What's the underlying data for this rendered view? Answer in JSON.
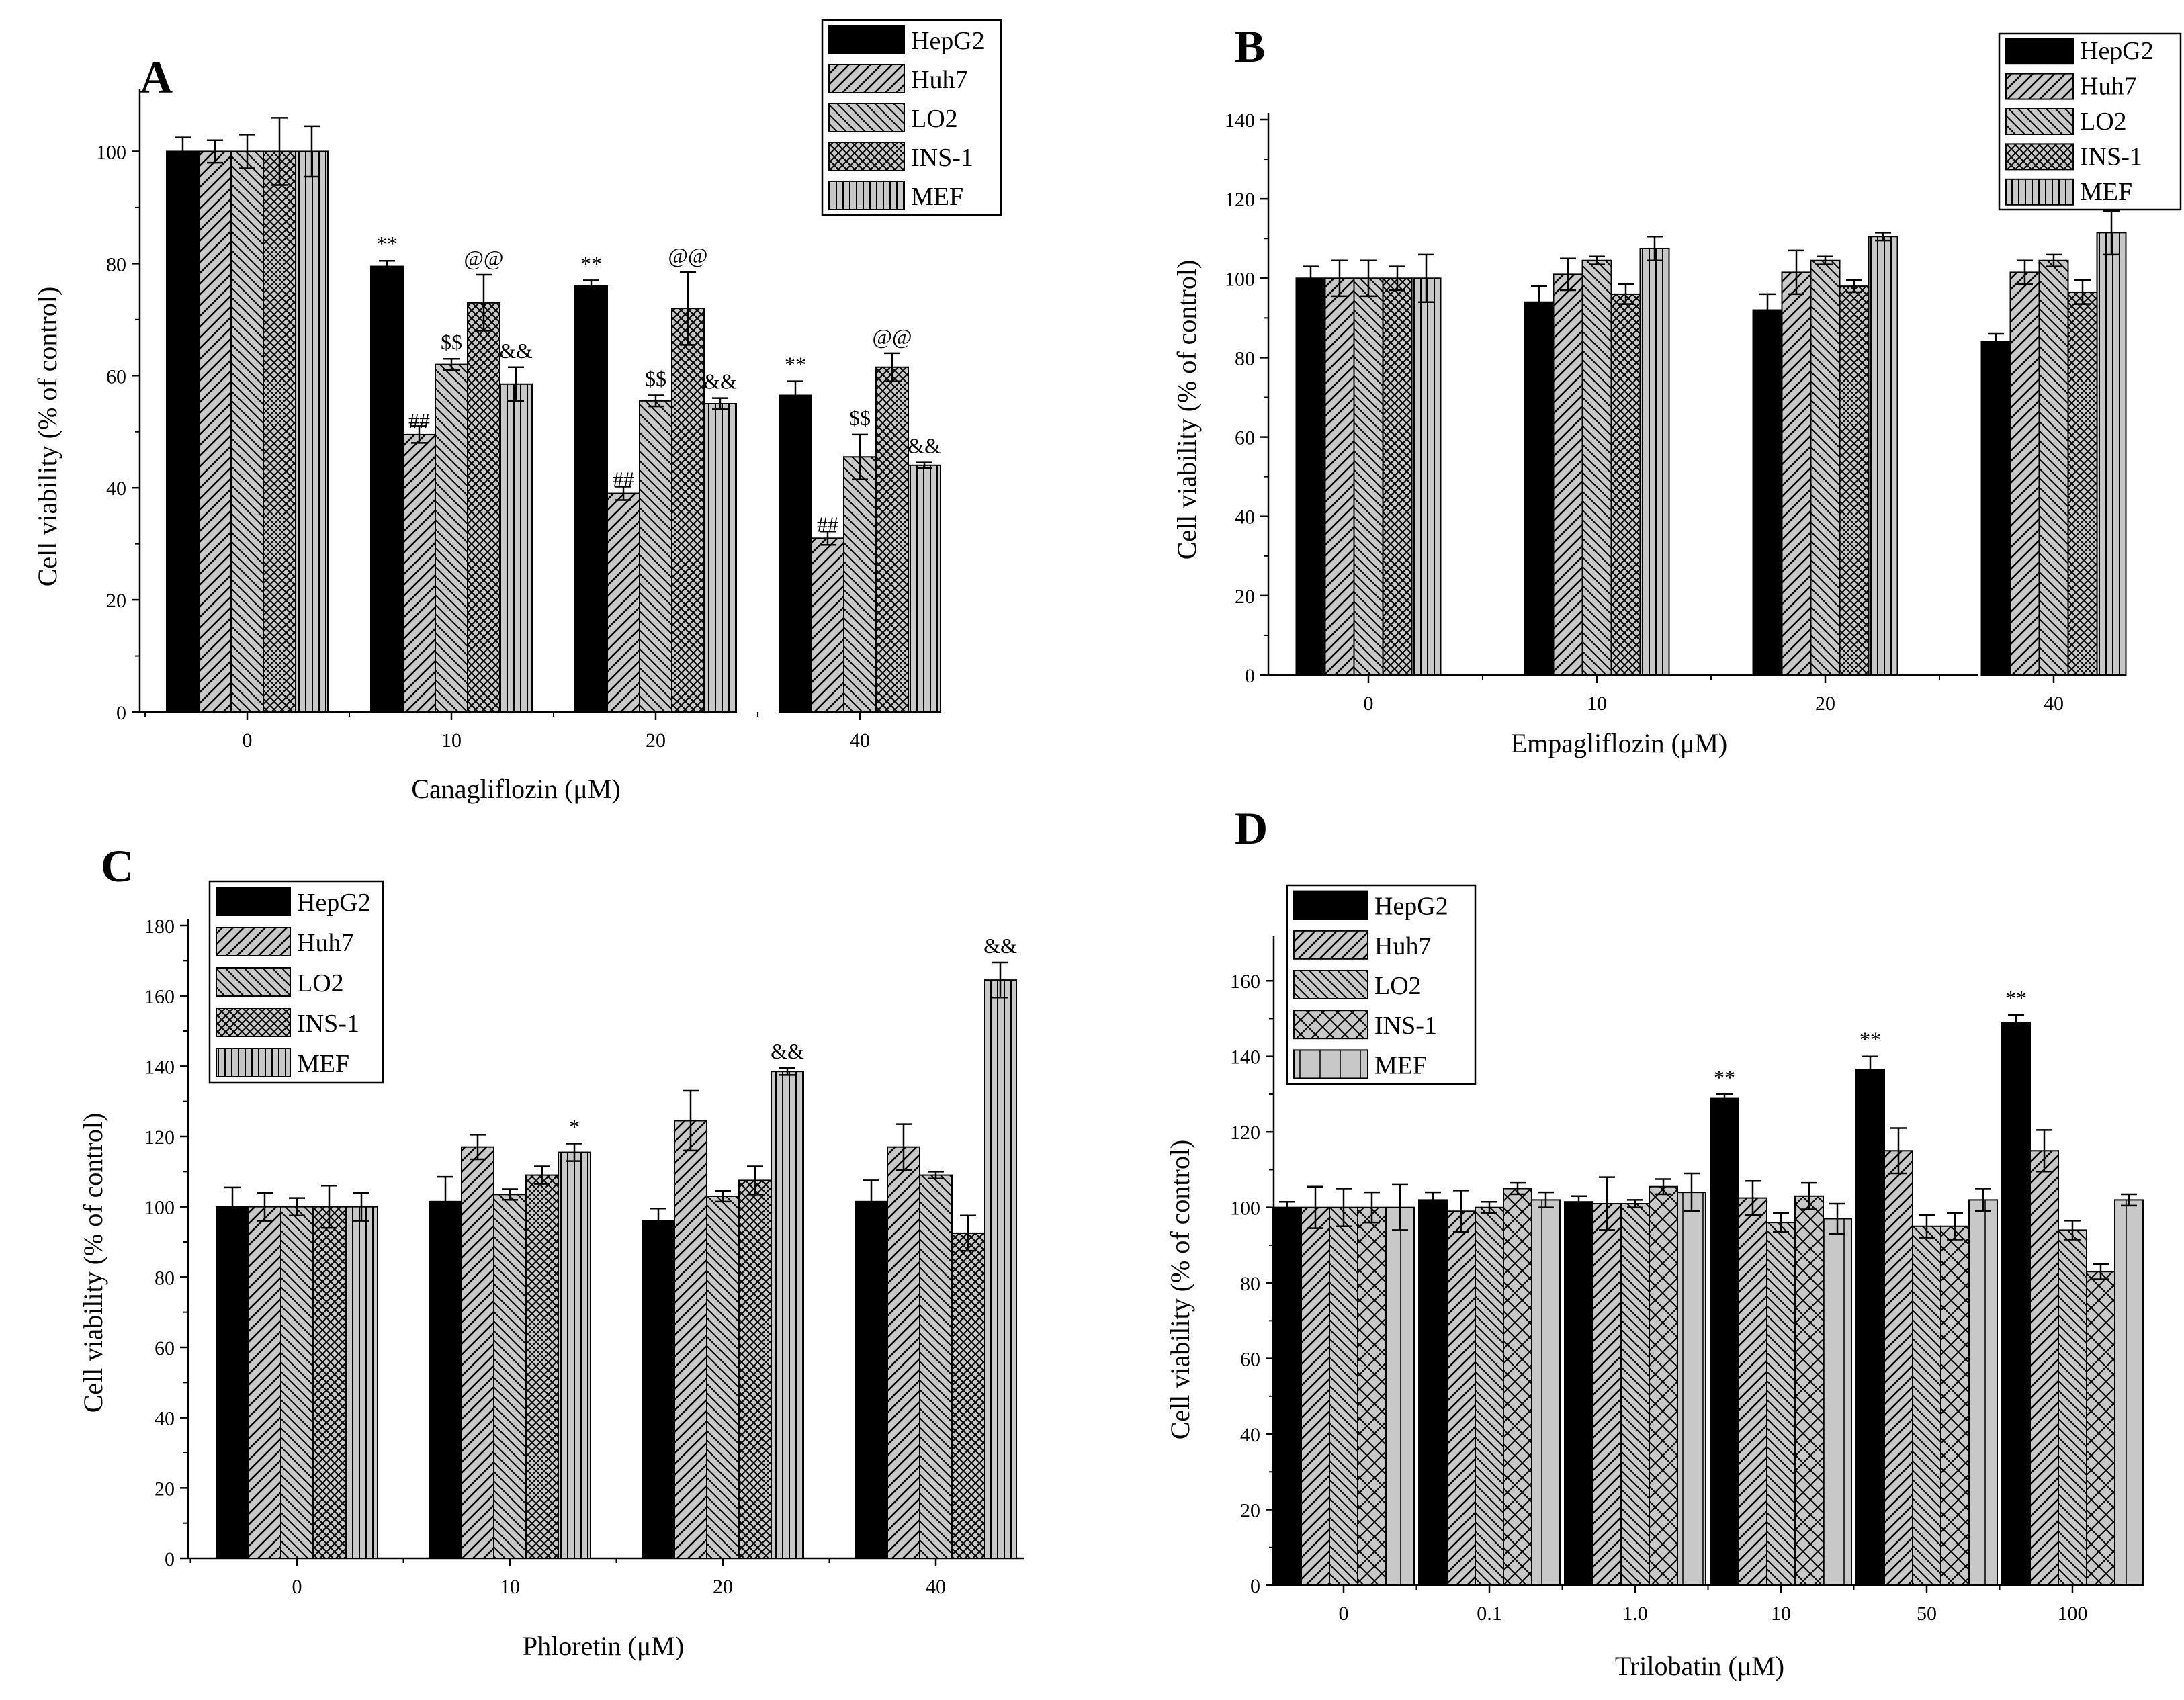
{
  "series_names": [
    "HepG2",
    "Huh7",
    "LO2",
    "INS-1",
    "MEF"
  ],
  "colors": {
    "HepG2": "#000000",
    "fill": "#c0c0c0",
    "stroke": "#000000"
  },
  "panels": [
    {
      "id": "A",
      "letter": "A",
      "chart_data": {
        "type": "bar",
        "title": "",
        "xlabel": "Canagliflozin (μM)",
        "ylabel": "Cell viability (% of control)",
        "categories": [
          "0",
          "10",
          "20",
          "40"
        ],
        "ylim": [
          0,
          110
        ],
        "yticks": [
          0,
          20,
          40,
          60,
          80,
          100
        ],
        "grid": false,
        "legend": "top-right",
        "series": [
          {
            "name": "HepG2",
            "values": [
              100,
              79.5,
              76,
              56.5
            ],
            "errors": [
              2.5,
              1.0,
              1.0,
              2.5
            ],
            "pattern": "solid"
          },
          {
            "name": "Huh7",
            "values": [
              100,
              49.5,
              39,
              31
            ],
            "errors": [
              2.0,
              1.5,
              1.2,
              1.2
            ],
            "pattern": "diag-right"
          },
          {
            "name": "LO2",
            "values": [
              100,
              62,
              55.5,
              45.5
            ],
            "errors": [
              3.0,
              1.0,
              1.0,
              4.0
            ],
            "pattern": "diag-left"
          },
          {
            "name": "INS-1",
            "values": [
              100,
              73,
              72,
              61.5
            ],
            "errors": [
              6.0,
              5.0,
              6.5,
              2.5
            ],
            "pattern": "cross"
          },
          {
            "name": "MEF",
            "values": [
              100,
              58.5,
              55,
              44
            ],
            "errors": [
              4.5,
              3.0,
              1.0,
              0.5
            ],
            "pattern": "vertical"
          }
        ],
        "annotations": [
          {
            "series": 0,
            "category": 1,
            "text": "**"
          },
          {
            "series": 1,
            "category": 1,
            "text": "##"
          },
          {
            "series": 2,
            "category": 1,
            "text": "$$"
          },
          {
            "series": 3,
            "category": 1,
            "text": "@@"
          },
          {
            "series": 4,
            "category": 1,
            "text": "&&"
          },
          {
            "series": 0,
            "category": 2,
            "text": "**"
          },
          {
            "series": 1,
            "category": 2,
            "text": "##"
          },
          {
            "series": 2,
            "category": 2,
            "text": "$$"
          },
          {
            "series": 3,
            "category": 2,
            "text": "@@"
          },
          {
            "series": 4,
            "category": 2,
            "text": "&&"
          },
          {
            "series": 0,
            "category": 3,
            "text": "**"
          },
          {
            "series": 1,
            "category": 3,
            "text": "##"
          },
          {
            "series": 2,
            "category": 3,
            "text": "$$"
          },
          {
            "series": 3,
            "category": 3,
            "text": "@@"
          },
          {
            "series": 4,
            "category": 3,
            "text": "&&"
          }
        ]
      }
    },
    {
      "id": "B",
      "letter": "B",
      "chart_data": {
        "type": "bar",
        "title": "",
        "xlabel": "Empagliflozin (μM)",
        "ylabel": "Cell viability (% of control)",
        "categories": [
          "0",
          "10",
          "20",
          "40"
        ],
        "ylim": [
          0,
          140
        ],
        "yticks": [
          0,
          20,
          40,
          60,
          80,
          100,
          120,
          140
        ],
        "grid": false,
        "legend": "top-right",
        "series": [
          {
            "name": "HepG2",
            "values": [
              100,
              94,
              92,
              84
            ],
            "errors": [
              3,
              4,
              4,
              2
            ],
            "pattern": "solid"
          },
          {
            "name": "Huh7",
            "values": [
              100,
              101,
              101.5,
              101.5
            ],
            "errors": [
              4.5,
              4,
              5.5,
              3
            ],
            "pattern": "diag-right"
          },
          {
            "name": "LO2",
            "values": [
              100,
              104.5,
              104.5,
              104.5
            ],
            "errors": [
              4.5,
              1,
              1,
              1.5
            ],
            "pattern": "diag-left"
          },
          {
            "name": "INS-1",
            "values": [
              100,
              96,
              98,
              96.5
            ],
            "errors": [
              3,
              2.5,
              1.5,
              3
            ],
            "pattern": "cross"
          },
          {
            "name": "MEF",
            "values": [
              100,
              107.5,
              110.5,
              111.5
            ],
            "errors": [
              6,
              3,
              1,
              5.5
            ],
            "pattern": "vertical"
          }
        ],
        "annotations": []
      }
    },
    {
      "id": "C",
      "letter": "C",
      "chart_data": {
        "type": "bar",
        "title": "",
        "xlabel": "Phloretin (μM)",
        "ylabel": "Cell viability (% of control)",
        "categories": [
          "0",
          "10",
          "20",
          "40"
        ],
        "ylim": [
          0,
          180
        ],
        "yticks": [
          0,
          20,
          40,
          60,
          80,
          100,
          120,
          140,
          160,
          180
        ],
        "grid": false,
        "legend": "top-left",
        "series": [
          {
            "name": "HepG2",
            "values": [
              100,
              101.5,
              96,
              101.5
            ],
            "errors": [
              5.5,
              7,
              3.5,
              6
            ],
            "pattern": "solid"
          },
          {
            "name": "Huh7",
            "values": [
              100,
              117,
              124.5,
              117
            ],
            "errors": [
              4,
              3.5,
              8.5,
              6.5
            ],
            "pattern": "diag-right"
          },
          {
            "name": "LO2",
            "values": [
              100,
              103.5,
              103,
              109
            ],
            "errors": [
              2.5,
              1.5,
              1.5,
              1
            ],
            "pattern": "diag-left"
          },
          {
            "name": "INS-1",
            "values": [
              100,
              109,
              107.5,
              92.5
            ],
            "errors": [
              6,
              2.5,
              4,
              5
            ],
            "pattern": "cross"
          },
          {
            "name": "MEF",
            "values": [
              100,
              115.5,
              138.5,
              164.5
            ],
            "errors": [
              4,
              2.5,
              1,
              5
            ],
            "pattern": "vertical"
          }
        ],
        "annotations": [
          {
            "series": 4,
            "category": 1,
            "text": "*"
          },
          {
            "series": 4,
            "category": 2,
            "text": "&&"
          },
          {
            "series": 4,
            "category": 3,
            "text": "&&"
          }
        ]
      }
    },
    {
      "id": "D",
      "letter": "D",
      "chart_data": {
        "type": "bar",
        "title": "",
        "xlabel": "Trilobatin (μM)",
        "ylabel": "Cell viability (% of control)",
        "categories": [
          "0",
          "0.1",
          "1.0",
          "10",
          "50",
          "100"
        ],
        "ylim": [
          0,
          170
        ],
        "yticks": [
          0,
          20,
          40,
          60,
          80,
          100,
          120,
          140,
          160
        ],
        "grid": false,
        "legend": "top-left",
        "series": [
          {
            "name": "HepG2",
            "values": [
              100,
              102,
              101.5,
              129,
              136.5,
              149
            ],
            "errors": [
              1.5,
              2,
              1.5,
              1,
              3.5,
              2
            ],
            "pattern": "solid"
          },
          {
            "name": "Huh7",
            "values": [
              100,
              99,
              101,
              102.5,
              115,
              115
            ],
            "errors": [
              5.5,
              5.5,
              7,
              4.5,
              6,
              5.5
            ],
            "pattern": "diag-right"
          },
          {
            "name": "LO2",
            "values": [
              100,
              100,
              101,
              96,
              95,
              94
            ],
            "errors": [
              5,
              1.5,
              1,
              2.5,
              3,
              2.5
            ],
            "pattern": "diag-left"
          },
          {
            "name": "INS-1",
            "values": [
              100,
              105,
              105.5,
              103,
              95,
              83
            ],
            "errors": [
              4,
              1.5,
              2,
              3.5,
              3.5,
              2
            ],
            "pattern": "cross-open"
          },
          {
            "name": "MEF",
            "values": [
              100,
              102,
              104,
              97,
              102,
              102
            ],
            "errors": [
              6,
              2,
              5,
              4,
              3,
              1.5
            ],
            "pattern": "vertical-open"
          }
        ],
        "annotations": [
          {
            "series": 0,
            "category": 3,
            "text": "**"
          },
          {
            "series": 0,
            "category": 4,
            "text": "**"
          },
          {
            "series": 0,
            "category": 5,
            "text": "**"
          }
        ]
      }
    }
  ]
}
